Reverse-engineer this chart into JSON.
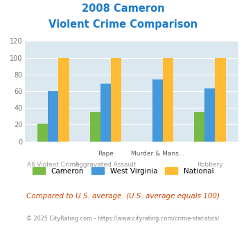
{
  "title_line1": "2008 Cameron",
  "title_line2": "Violent Crime Comparison",
  "cameron_values": [
    21,
    35,
    0,
    35
  ],
  "wv_values": [
    60,
    69,
    74,
    63
  ],
  "national_values": [
    100,
    100,
    100,
    100
  ],
  "xlabels_top": [
    "",
    "Rape",
    "Murder & Mans...",
    ""
  ],
  "xlabels_bottom": [
    "All Violent Crime",
    "Aggravated Assault",
    "",
    "Robbery"
  ],
  "cameron_color": "#77bb44",
  "wv_color": "#4499dd",
  "national_color": "#ffbb33",
  "ylim": [
    0,
    120
  ],
  "yticks": [
    0,
    20,
    40,
    60,
    80,
    100,
    120
  ],
  "bg_color": "#dce8f0",
  "grid_color": "#ffffff",
  "title_color": "#1a7acc",
  "footnote": "Compared to U.S. average. (U.S. average equals 100)",
  "copyright": "© 2025 CityRating.com - https://www.cityrating.com/crime-statistics/",
  "footnote_color": "#cc4400",
  "copyright_color": "#888888"
}
